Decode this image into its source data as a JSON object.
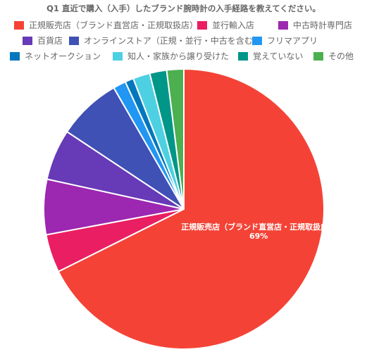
{
  "chart_data": {
    "type": "pie",
    "title": "Q1 直近で購入（入手）したブランド腕時計の入手経路を教えてください。",
    "categories": [
      "正規販売店（ブランド直営店・正規取扱店）",
      "並行輸入店",
      "中古時計専門店",
      "百貨店",
      "オンラインストア（正規・並行・中古を含む）",
      "フリマアプリ",
      "ネットオークション",
      "知人・家族から譲り受けた",
      "覚えていない",
      "その他"
    ],
    "values": [
      69,
      4.5,
      6.5,
      6,
      7.5,
      1.5,
      1,
      2,
      2,
      2
    ],
    "colors": [
      "#f44336",
      "#e91e63",
      "#9c27b0",
      "#673ab7",
      "#3f51b5",
      "#2196f3",
      "#0277bd",
      "#4dd0e1",
      "#009688",
      "#4caf50"
    ],
    "slice_label": {
      "category": "正規販売店（ブランド直営店・正規取扱店）",
      "value_text": "69%"
    },
    "legend_position": "top"
  }
}
